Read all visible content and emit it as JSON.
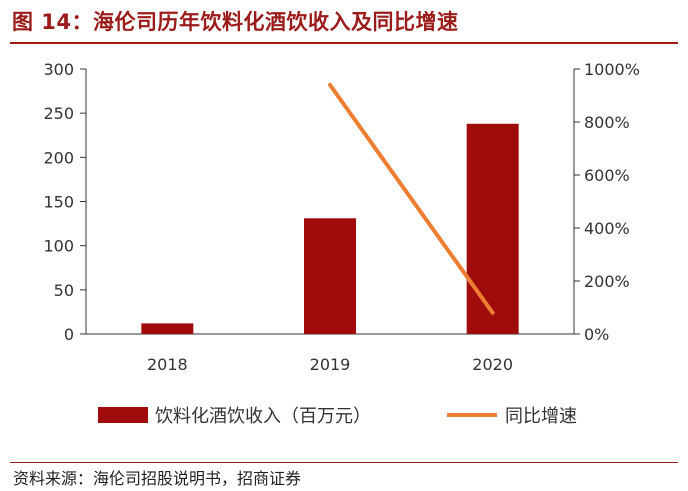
{
  "header": {
    "title": "图 14：海伦司历年饮料化酒饮收入及同比增速"
  },
  "footer": {
    "source": "资料来源：海伦司招股说明书，招商证券"
  },
  "colors": {
    "bar": "#a00c0c",
    "line": "#ed7d31",
    "accent": "#9b1b1b"
  },
  "chart_data": {
    "type": "bar",
    "categories": [
      "2018",
      "2019",
      "2020"
    ],
    "series": [
      {
        "name": "饮料化酒饮收入（百万元）",
        "type": "bar",
        "axis": "left",
        "values": [
          12,
          131,
          238
        ]
      },
      {
        "name": "同比增速",
        "type": "line",
        "axis": "right",
        "values": [
          null,
          940,
          80
        ]
      }
    ],
    "ylim": [
      0,
      300
    ],
    "y2lim": [
      0,
      1000
    ],
    "yticks": [
      "0",
      "50",
      "100",
      "150",
      "200",
      "250",
      "300"
    ],
    "y2ticks": [
      "0%",
      "200%",
      "400%",
      "600%",
      "800%",
      "1000%"
    ],
    "legend_position": "bottom"
  }
}
